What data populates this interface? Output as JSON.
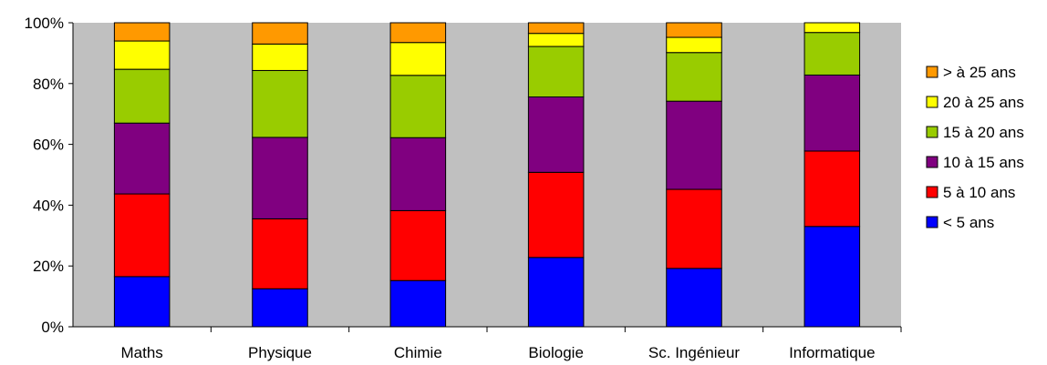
{
  "chart_data": {
    "type": "bar",
    "stacked": "percent",
    "categories": [
      "Maths",
      "Physique",
      "Chimie",
      "Biologie",
      "Sc. Ingénieur",
      "Informatique"
    ],
    "series": [
      {
        "name": "< 5 ans",
        "color": "#0000ff",
        "values": [
          16.5,
          12.5,
          15.2,
          22.8,
          19.2,
          33.0
        ]
      },
      {
        "name": "5 à 10 ans",
        "color": "#ff0000",
        "values": [
          27.2,
          23.0,
          23.0,
          28.0,
          26.0,
          24.8
        ]
      },
      {
        "name": "10 à 15 ans",
        "color": "#800080",
        "values": [
          23.3,
          26.8,
          24.0,
          24.8,
          29.0,
          25.0
        ]
      },
      {
        "name": "15 à 20 ans",
        "color": "#99cc00",
        "values": [
          17.7,
          22.0,
          20.5,
          16.6,
          16.0,
          14.0
        ]
      },
      {
        "name": "20 à 25 ans",
        "color": "#ffff00",
        "values": [
          9.3,
          8.7,
          10.8,
          4.3,
          5.0,
          3.2
        ]
      },
      {
        "name": "> à 25 ans",
        "color": "#ff9900",
        "values": [
          6.0,
          7.0,
          6.5,
          3.5,
          4.8,
          0.0
        ]
      }
    ],
    "yticks": [
      "0%",
      "20%",
      "40%",
      "60%",
      "80%",
      "100%"
    ],
    "ylim": [
      0,
      100
    ],
    "plot_background": "#c0c0c0",
    "grid": false,
    "legend_position": "right"
  }
}
